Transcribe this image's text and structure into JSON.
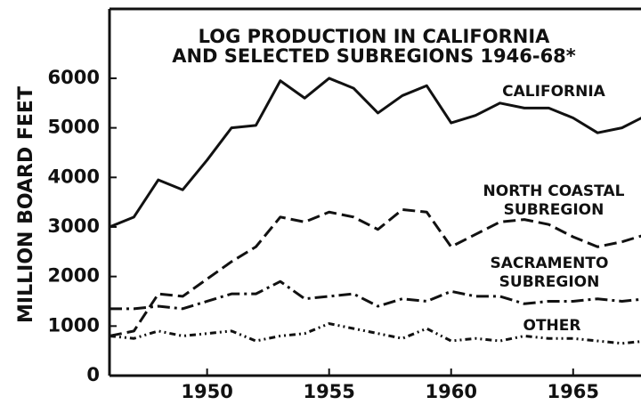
{
  "chart_data": {
    "type": "line",
    "title": [
      "LOG PRODUCTION IN CALIFORNIA",
      "AND SELECTED SUBREGIONS 1946-68*"
    ],
    "y_label": "MILLION BOARD FEET",
    "x": [
      1946,
      1947,
      1948,
      1949,
      1950,
      1951,
      1952,
      1953,
      1954,
      1955,
      1956,
      1957,
      1958,
      1959,
      1960,
      1961,
      1962,
      1963,
      1964,
      1965,
      1966,
      1967,
      1968
    ],
    "series": [
      {
        "name": "CALIFORNIA",
        "color": "#111111",
        "dash": "solid",
        "values": [
          3000,
          3200,
          3950,
          3750,
          4350,
          5000,
          5050,
          5950,
          5600,
          6000,
          5800,
          5300,
          5650,
          5850,
          5100,
          5250,
          5500,
          5400,
          5400,
          5200,
          4900,
          5000,
          5250
        ]
      },
      {
        "name": "NORTH COASTAL SUBREGION",
        "color": "#111111",
        "dash": "dashed",
        "values": [
          800,
          900,
          1650,
          1600,
          1950,
          2300,
          2600,
          3200,
          3100,
          3300,
          3200,
          2950,
          3350,
          3300,
          2600,
          2850,
          3100,
          3150,
          3050,
          2800,
          2600,
          2700,
          2850
        ]
      },
      {
        "name": "SACRAMENTO SUBREGION",
        "color": "#111111",
        "dash": "dashdot",
        "values": [
          1350,
          1350,
          1400,
          1350,
          1500,
          1650,
          1650,
          1900,
          1550,
          1600,
          1650,
          1400,
          1550,
          1500,
          1700,
          1600,
          1600,
          1450,
          1500,
          1500,
          1550,
          1500,
          1550
        ]
      },
      {
        "name": "OTHER",
        "color": "#111111",
        "dash": "dashdotdot",
        "values": [
          800,
          750,
          900,
          800,
          850,
          900,
          700,
          800,
          850,
          1050,
          950,
          850,
          750,
          950,
          700,
          750,
          700,
          800,
          750,
          750,
          700,
          650,
          700
        ]
      }
    ],
    "xlim": [
      1946,
      1968
    ],
    "xticks": [
      1950,
      1955,
      1960,
      1965
    ],
    "ylim": [
      0,
      7400
    ],
    "yticks": [
      0,
      1000,
      2000,
      3000,
      4000,
      5000,
      6000
    ]
  }
}
